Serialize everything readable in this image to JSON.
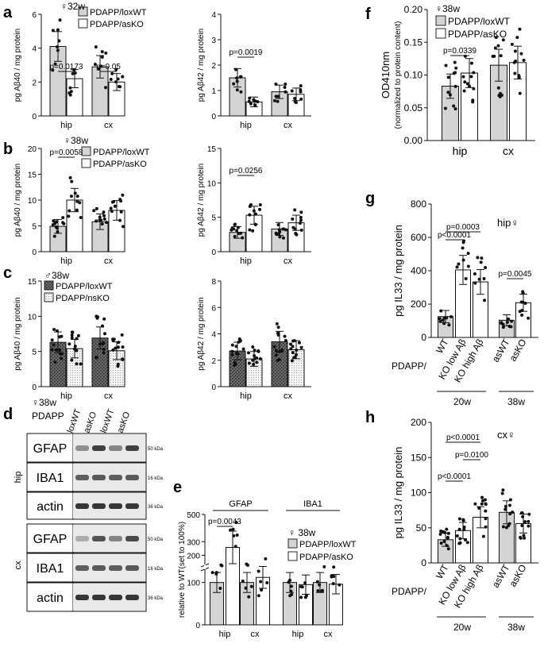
{
  "legend": {
    "loxWT": "PDAPP/loxWT",
    "asKO": "PDAPP/asKO",
    "nsKO": "PDAPP/nsKO"
  },
  "colors": {
    "grey": "#d4d4d4",
    "dark": "#666666",
    "dotted": "#eeeeee",
    "white": "#ffffff",
    "ink": "#111111"
  },
  "labels": {
    "a": "a",
    "b": "b",
    "c": "c",
    "d": "d",
    "e": "e",
    "f": "f",
    "g": "g",
    "h": "h"
  },
  "chart_data": [
    {
      "id": "a1",
      "type": "bar",
      "panel": "a",
      "title": "♀32w",
      "ylabel": "pg Aβ40 / mg protein",
      "categories": [
        "hip",
        "cx"
      ],
      "ylim": [
        0,
        6
      ],
      "yticks": [
        0,
        2,
        4,
        6
      ],
      "series": [
        {
          "name": "PDAPP/loxWT",
          "values": [
            4.1,
            2.9
          ]
        },
        {
          "name": "PDAPP/asKO",
          "values": [
            2.2,
            2.0
          ]
        }
      ],
      "annotations": [
        {
          "text": "p=0.0173",
          "cat": "hip"
        },
        {
          "text": "p=0.05",
          "cat": "cx"
        }
      ]
    },
    {
      "id": "a2",
      "type": "bar",
      "panel": "a",
      "ylabel": "pg Aβ42 / mg protein",
      "categories": [
        "hip",
        "cx"
      ],
      "ylim": [
        0,
        4
      ],
      "yticks": [
        0,
        1,
        2,
        3,
        4
      ],
      "series": [
        {
          "name": "PDAPP/loxWT",
          "values": [
            1.5,
            0.95
          ]
        },
        {
          "name": "PDAPP/asKO",
          "values": [
            0.55,
            0.85
          ]
        }
      ],
      "annotations": [
        {
          "text": "p=0.0019",
          "cat": "hip"
        }
      ]
    },
    {
      "id": "b1",
      "type": "bar",
      "panel": "b",
      "title": "♀38w",
      "ylabel": "pg Aβ40 / mg protein",
      "categories": [
        "hip",
        "cx"
      ],
      "ylim": [
        0,
        20
      ],
      "yticks": [
        0,
        5,
        10,
        15,
        20
      ],
      "series": [
        {
          "name": "PDAPP/loxWT",
          "values": [
            4.9,
            5.8
          ]
        },
        {
          "name": "PDAPP/asKO",
          "values": [
            10.0,
            8.0
          ]
        }
      ],
      "annotations": [
        {
          "text": "p=0.0058",
          "cat": "hip"
        }
      ]
    },
    {
      "id": "b2",
      "type": "bar",
      "panel": "b",
      "ylabel": "pg Aβ42 / mg protein",
      "categories": [
        "hip",
        "cx"
      ],
      "ylim": [
        0,
        15
      ],
      "yticks": [
        0,
        5,
        10,
        15
      ],
      "series": [
        {
          "name": "PDAPP/loxWT",
          "values": [
            2.8,
            3.3
          ]
        },
        {
          "name": "PDAPP/asKO",
          "values": [
            5.3,
            4.2
          ]
        }
      ],
      "annotations": [
        {
          "text": "p=0.0256",
          "cat": "hip"
        }
      ]
    },
    {
      "id": "c1",
      "type": "bar",
      "panel": "c",
      "title": "♂38w",
      "ylabel": "pg Aβ40 / mg protein",
      "categories": [
        "hip",
        "cx"
      ],
      "ylim": [
        0,
        15
      ],
      "yticks": [
        0,
        5,
        10,
        15
      ],
      "series": [
        {
          "name": "PDAPP/loxWT",
          "values": [
            6.3,
            6.9
          ]
        },
        {
          "name": "PDAPP/nsKO",
          "values": [
            5.4,
            5.1
          ]
        }
      ],
      "annotations": []
    },
    {
      "id": "c2",
      "type": "bar",
      "panel": "c",
      "ylabel": "pg Aβ42 / mg protein",
      "categories": [
        "hip",
        "cx"
      ],
      "ylim": [
        0,
        8
      ],
      "yticks": [
        0,
        2,
        4,
        6,
        8
      ],
      "series": [
        {
          "name": "PDAPP/loxWT",
          "values": [
            2.7,
            3.4
          ]
        },
        {
          "name": "PDAPP/nsKO",
          "values": [
            2.1,
            2.8
          ]
        }
      ],
      "annotations": []
    },
    {
      "id": "e",
      "type": "bar",
      "panel": "e",
      "title": "♀ 38w",
      "ylabel": "relative to WT(set to 100%)",
      "group_labels": [
        "GFAP",
        "IBA1"
      ],
      "categories": [
        "hip",
        "cx",
        "hip",
        "cx"
      ],
      "ylim": [
        0,
        500
      ],
      "yticks": [
        0,
        100,
        200,
        300,
        500
      ],
      "series": [
        {
          "name": "PDAPP/loxWT",
          "values": [
            100,
            100,
            100,
            100
          ]
        },
        {
          "name": "PDAPP/asKO",
          "values": [
            258,
            112,
            95,
            96
          ]
        }
      ],
      "annotations": [
        {
          "text": "p=0.0043",
          "cat": "hip"
        }
      ]
    },
    {
      "id": "f",
      "type": "bar",
      "panel": "f",
      "title": "♀38w",
      "ylabel": "OD410nm",
      "ylabel2": "(normalized to protein content)",
      "categories": [
        "hip",
        "cx"
      ],
      "ylim": [
        0,
        0.2
      ],
      "yticks": [
        0,
        0.05,
        0.1,
        0.15,
        0.2
      ],
      "ytick_labels": [
        "0.00",
        "0.05",
        "0.10",
        "0.15",
        "0.20"
      ],
      "series": [
        {
          "name": "PDAPP/loxWT",
          "values": [
            0.083,
            0.115
          ]
        },
        {
          "name": "PDAPP/asKO",
          "values": [
            0.103,
            0.119
          ]
        }
      ],
      "annotations": [
        {
          "text": "p=0.0339",
          "cat": "hip"
        }
      ]
    },
    {
      "id": "g",
      "type": "bar",
      "panel": "g",
      "title": "hip♀",
      "ylabel": "pg IL33 / mg protein",
      "row_label": "PDAPP/",
      "categories": [
        "WT",
        "KO low Aβ",
        "KO high Aβ",
        "asWT",
        "asKO"
      ],
      "values": [
        125,
        405,
        333,
        103,
        208
      ],
      "ylim": [
        0,
        800
      ],
      "yticks": [
        0,
        200,
        400,
        600,
        800
      ],
      "ages": [
        "20w",
        "38w"
      ],
      "annotations": [
        {
          "text": "p<0.0001"
        },
        {
          "text": "p=0.0003"
        },
        {
          "text": "p=0.0045"
        }
      ]
    },
    {
      "id": "h",
      "type": "bar",
      "panel": "h",
      "title": "cx♀",
      "ylabel": "pg IL33 / mg protein",
      "row_label": "PDAPP/",
      "categories": [
        "WT",
        "KO low Aβ",
        "KO high Aβ",
        "asWT",
        "asKO"
      ],
      "values": [
        33,
        46,
        65,
        72,
        56
      ],
      "ylim": [
        0,
        200
      ],
      "yticks": [
        0,
        50,
        100,
        150,
        200
      ],
      "ages": [
        "20w",
        "38w"
      ],
      "annotations": [
        {
          "text": "p<0.0001"
        },
        {
          "text": "p=0.0100"
        },
        {
          "text": "p<0.0001"
        }
      ]
    }
  ],
  "blot": {
    "header": "♀38w",
    "header2": "PDAPP",
    "lanes": [
      "loxWT",
      "asKO",
      "loxWT",
      "asKO"
    ],
    "regions": [
      "hip",
      "cx"
    ],
    "proteins": [
      "GFAP",
      "IBA1",
      "actin"
    ],
    "markers": [
      "50 kDa",
      "16 kDa",
      "36 kDa"
    ]
  }
}
